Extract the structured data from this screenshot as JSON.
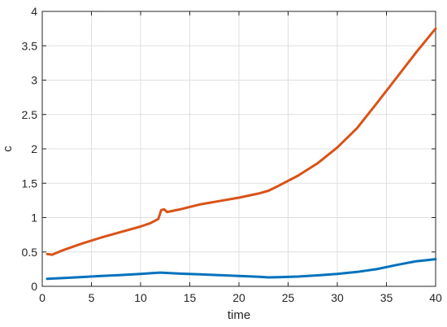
{
  "chart_data": {
    "type": "line",
    "title": "",
    "xlabel": "time",
    "ylabel": "c",
    "xlim": [
      0,
      40
    ],
    "ylim": [
      0,
      4
    ],
    "xticks": [
      0,
      5,
      10,
      15,
      20,
      25,
      30,
      35,
      40
    ],
    "yticks": [
      0,
      0.5,
      1,
      1.5,
      2,
      2.5,
      3,
      3.5,
      4
    ],
    "xtick_labels": [
      "0",
      "5",
      "10",
      "15",
      "20",
      "25",
      "30",
      "35",
      "40"
    ],
    "ytick_labels": [
      "0",
      "0.5",
      "1",
      "1.5",
      "2",
      "2.5",
      "3",
      "3.5",
      "4"
    ],
    "grid": true,
    "legend": "none",
    "series": [
      {
        "color": "#0072bd",
        "x": [
          0.5,
          2,
          4,
          6,
          8,
          10,
          11,
          12,
          14,
          16,
          18,
          20,
          22,
          23,
          24,
          26,
          28,
          30,
          32,
          34,
          36,
          38,
          40
        ],
        "y": [
          0.11,
          0.12,
          0.135,
          0.15,
          0.165,
          0.18,
          0.19,
          0.2,
          0.185,
          0.175,
          0.162,
          0.15,
          0.138,
          0.13,
          0.132,
          0.142,
          0.16,
          0.18,
          0.21,
          0.25,
          0.31,
          0.365,
          0.395
        ]
      },
      {
        "color": "#d95319",
        "x": [
          0.5,
          1,
          2,
          4,
          6,
          8,
          10,
          11,
          11.8,
          12.1,
          12.4,
          12.7,
          13,
          14,
          16,
          18,
          20,
          22,
          23,
          24,
          26,
          28,
          30,
          32,
          34,
          36,
          38,
          40
        ],
        "y": [
          0.47,
          0.46,
          0.52,
          0.62,
          0.71,
          0.79,
          0.87,
          0.92,
          0.98,
          1.11,
          1.12,
          1.08,
          1.09,
          1.12,
          1.19,
          1.24,
          1.29,
          1.35,
          1.39,
          1.46,
          1.61,
          1.79,
          2.02,
          2.3,
          2.66,
          3.03,
          3.4,
          3.75
        ]
      }
    ]
  }
}
